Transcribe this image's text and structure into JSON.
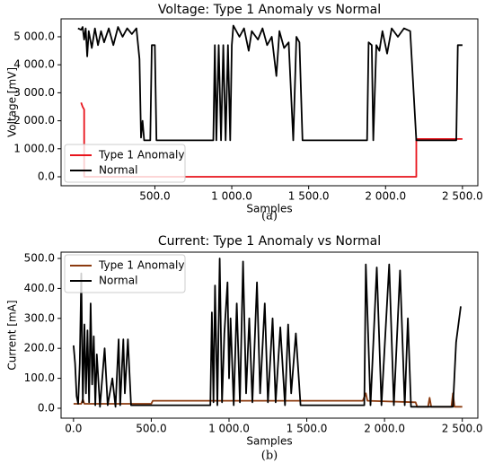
{
  "chart_data": [
    {
      "type": "line",
      "title": "Voltage: Type 1 Anomaly vs Normal",
      "xlabel": "Samples",
      "ylabel": "Voltage [mV]",
      "caption": "(a)",
      "legend": "lower left",
      "xlim": [
        -110,
        2600
      ],
      "ylim": [
        -320,
        5640
      ],
      "xticks": [
        {
          "value": 500,
          "label": "500.0"
        },
        {
          "value": 1000,
          "label": "1 000.0"
        },
        {
          "value": 1500,
          "label": "1 500.0"
        },
        {
          "value": 2000,
          "label": "2 000.0"
        },
        {
          "value": 2500,
          "label": "2 500.0"
        }
      ],
      "yticks": [
        {
          "value": 0,
          "label": "0.0"
        },
        {
          "value": 1000,
          "label": "1 000.0"
        },
        {
          "value": 2000,
          "label": "2 000.0"
        },
        {
          "value": 3000,
          "label": "3 000.0"
        },
        {
          "value": 4000,
          "label": "4 000.0"
        },
        {
          "value": 5000,
          "label": "5 000.0"
        }
      ],
      "series": [
        {
          "name": "Type 1 Anomaly",
          "color": "#e8141c",
          "x": [
            20,
            30,
            40,
            40,
            2200,
            2200,
            2500
          ],
          "values": [
            2650,
            2500,
            2400,
            0,
            0,
            1350,
            1350
          ]
        },
        {
          "name": "Normal",
          "color": "#000000",
          "x": [
            0,
            20,
            30,
            40,
            50,
            60,
            70,
            90,
            110,
            130,
            150,
            170,
            200,
            230,
            260,
            290,
            320,
            350,
            380,
            400,
            410,
            420,
            430,
            470,
            480,
            500,
            510,
            880,
            890,
            900,
            915,
            930,
            945,
            960,
            975,
            990,
            1000,
            1010,
            1050,
            1080,
            1110,
            1130,
            1170,
            1200,
            1230,
            1260,
            1290,
            1310,
            1340,
            1370,
            1400,
            1420,
            1440,
            1460,
            1880,
            1890,
            1910,
            1920,
            1940,
            1960,
            1980,
            2010,
            2040,
            2080,
            2120,
            2160,
            2200,
            2460,
            2470,
            2500
          ],
          "values": [
            5300,
            5250,
            5350,
            4900,
            5300,
            4300,
            5200,
            4600,
            5300,
            4700,
            5200,
            4800,
            5300,
            4700,
            5350,
            5000,
            5300,
            5100,
            5300,
            4200,
            1400,
            2000,
            1300,
            1300,
            4700,
            4700,
            1300,
            1300,
            4700,
            1300,
            4700,
            1300,
            4700,
            1300,
            4700,
            1300,
            4700,
            5400,
            5000,
            5300,
            4500,
            5200,
            4900,
            5300,
            4700,
            5000,
            3600,
            5200,
            4600,
            4800,
            1300,
            5000,
            4800,
            1300,
            1300,
            4800,
            4700,
            1300,
            4700,
            4500,
            5200,
            4400,
            5300,
            5000,
            5300,
            5200,
            1300,
            1300,
            4700,
            4700
          ]
        }
      ]
    },
    {
      "type": "line",
      "title": "Current: Type 1 Anomaly vs Normal",
      "xlabel": "Samples",
      "ylabel": "Current [mA]",
      "caption": "(b)",
      "legend": "upper left",
      "xlim": [
        -80,
        2600
      ],
      "ylim": [
        -33,
        521
      ],
      "xticks": [
        {
          "value": 0,
          "label": "0.0"
        },
        {
          "value": 500,
          "label": "500.0"
        },
        {
          "value": 1000,
          "label": "1 000.0"
        },
        {
          "value": 1500,
          "label": "1 500.0"
        },
        {
          "value": 2000,
          "label": "2 000.0"
        },
        {
          "value": 2500,
          "label": "2 500.0"
        }
      ],
      "yticks": [
        {
          "value": 0,
          "label": "0.0"
        },
        {
          "value": 100,
          "label": "100.0"
        },
        {
          "value": 200,
          "label": "200.0"
        },
        {
          "value": 300,
          "label": "300.0"
        },
        {
          "value": 400,
          "label": "400.0"
        },
        {
          "value": 500,
          "label": "500.0"
        }
      ],
      "series": [
        {
          "name": "Type 1 Anomaly",
          "color": "#8b3a0f",
          "x": [
            0,
            50,
            60,
            70,
            500,
            510,
            1860,
            1880,
            1890,
            2200,
            2210,
            2280,
            2290,
            2300,
            2430,
            2440,
            2450,
            2500
          ],
          "values": [
            15,
            15,
            30,
            15,
            15,
            25,
            25,
            50,
            25,
            20,
            5,
            5,
            35,
            5,
            5,
            50,
            5,
            5
          ]
        },
        {
          "name": "Normal",
          "color": "#000000",
          "x": [
            0,
            10,
            20,
            30,
            40,
            50,
            60,
            70,
            80,
            90,
            100,
            110,
            120,
            130,
            140,
            150,
            170,
            200,
            220,
            250,
            270,
            290,
            300,
            320,
            330,
            350,
            370,
            880,
            890,
            900,
            910,
            925,
            940,
            955,
            970,
            990,
            1000,
            1010,
            1030,
            1050,
            1070,
            1090,
            1110,
            1130,
            1150,
            1180,
            1200,
            1230,
            1250,
            1280,
            1300,
            1330,
            1360,
            1380,
            1400,
            1430,
            1460,
            1870,
            1880,
            1910,
            1950,
            1980,
            2030,
            2060,
            2100,
            2130,
            2150,
            2170,
            2440,
            2460,
            2490
          ],
          "values": [
            210,
            150,
            40,
            15,
            150,
            450,
            20,
            280,
            50,
            260,
            20,
            350,
            80,
            240,
            10,
            180,
            5,
            200,
            10,
            100,
            5,
            230,
            10,
            230,
            50,
            230,
            10,
            10,
            320,
            20,
            410,
            10,
            500,
            20,
            250,
            420,
            100,
            300,
            10,
            350,
            20,
            490,
            50,
            300,
            20,
            420,
            50,
            350,
            20,
            300,
            20,
            270,
            10,
            280,
            50,
            250,
            10,
            10,
            480,
            10,
            470,
            10,
            480,
            10,
            460,
            10,
            300,
            5,
            5,
            220,
            340
          ]
        }
      ]
    }
  ]
}
